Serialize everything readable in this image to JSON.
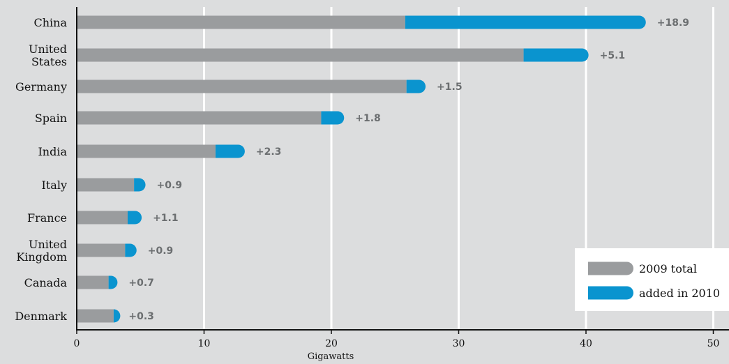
{
  "chart_data": {
    "type": "bar",
    "orientation": "horizontal",
    "stacked": true,
    "categories": [
      "China",
      "United States",
      "Germany",
      "Spain",
      "India",
      "Italy",
      "France",
      "United Kingdom",
      "Canada",
      "Denmark"
    ],
    "category_lines": [
      [
        "China"
      ],
      [
        "United",
        "States"
      ],
      [
        "Germany"
      ],
      [
        "Spain"
      ],
      [
        "India"
      ],
      [
        "Italy"
      ],
      [
        "France"
      ],
      [
        "United",
        "Kingdom"
      ],
      [
        "Canada"
      ],
      [
        "Denmark"
      ]
    ],
    "series": [
      {
        "name": "2009 total",
        "values": [
          25.8,
          35.1,
          25.9,
          19.2,
          10.9,
          4.5,
          4.0,
          3.8,
          2.5,
          2.9
        ]
      },
      {
        "name": "added in 2010",
        "values": [
          18.9,
          5.1,
          1.5,
          1.8,
          2.3,
          0.9,
          1.1,
          0.9,
          0.7,
          0.3
        ]
      }
    ],
    "data_labels": [
      "+18.9",
      "+5.1",
      "+1.5",
      "+1.8",
      "+2.3",
      "+0.9",
      "+1.1",
      "+0.9",
      "+0.7",
      "+0.3"
    ],
    "xlabel": "Gigawatts",
    "xlim": [
      0,
      50
    ],
    "xticks": [
      0,
      10,
      20,
      30,
      40,
      50
    ],
    "grid": true,
    "legend": {
      "placement": "bottom-right",
      "entries": [
        "2009 total",
        "added in 2010"
      ]
    },
    "colors": {
      "base": "#9a9c9e",
      "added": "#0a94cf",
      "background": "#dcddde",
      "grid": "#ffffff",
      "label": "#6b6e70"
    }
  }
}
